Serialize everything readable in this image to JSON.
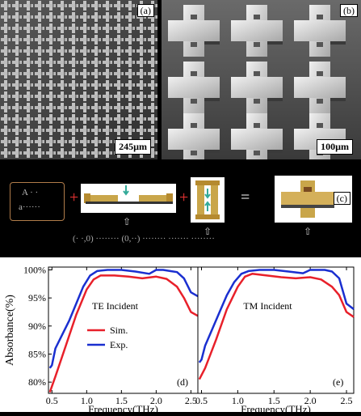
{
  "panels": {
    "a": {
      "label": "(a)",
      "scale": "245µm"
    },
    "b": {
      "label": "(b)",
      "scale": "100µm"
    },
    "c": {
      "label": "(c)"
    },
    "d": {
      "label": "(d)"
    },
    "e": {
      "label": "(e)"
    }
  },
  "schematic": {
    "box_text_1": "A · ·",
    "box_text_2": "a······",
    "op1": "+",
    "op2": "+",
    "op3": "=",
    "caption": "(· ·,0) ········ (0,··) ········ ······· ········"
  },
  "chart_data": [
    {
      "type": "line",
      "panel": "d",
      "annotation": "TE Incident",
      "xlabel": "Frequency(THz)",
      "ylabel": "Absorbance(%)",
      "xlim": [
        0.45,
        2.6
      ],
      "ylim": [
        78,
        100.5
      ],
      "xticks": [
        "0.5",
        "1.0",
        "1.5",
        "2.0",
        "2.5"
      ],
      "yticks": [
        "80%",
        "85%",
        "90%",
        "95%",
        "100%"
      ],
      "legend": [
        "Sim.",
        "Exp."
      ],
      "series": [
        {
          "name": "Sim.",
          "color": "#e8202a",
          "x": [
            0.47,
            0.55,
            0.7,
            0.85,
            1.0,
            1.1,
            1.2,
            1.4,
            1.6,
            1.8,
            2.0,
            2.15,
            2.3,
            2.4,
            2.5,
            2.6
          ],
          "y": [
            78.2,
            81,
            86.5,
            92,
            96.5,
            98.3,
            99.0,
            99.0,
            98.8,
            98.5,
            98.8,
            98.4,
            97.0,
            95.0,
            92.5,
            91.8
          ]
        },
        {
          "name": "Exp.",
          "color": "#1a2fd0",
          "x": [
            0.47,
            0.5,
            0.55,
            0.65,
            0.75,
            0.85,
            0.95,
            1.05,
            1.15,
            1.3,
            1.5,
            1.7,
            1.9,
            2.0,
            2.1,
            2.2,
            2.3,
            2.4,
            2.5,
            2.6
          ],
          "y": [
            82.5,
            83,
            86,
            88.5,
            91,
            94,
            97,
            99,
            99.8,
            100,
            100,
            99.7,
            99.3,
            100,
            100,
            99.8,
            99.6,
            98.5,
            96,
            95.3
          ]
        }
      ]
    },
    {
      "type": "line",
      "panel": "e",
      "annotation": "TM Incident",
      "xlabel": "Frequency(THz)",
      "xlim": [
        0.45,
        2.6
      ],
      "ylim": [
        78,
        100.5
      ],
      "xticks": [
        "0.5",
        "1.0",
        "1.5",
        "2.0",
        "2.5"
      ],
      "series": [
        {
          "name": "Sim.",
          "color": "#e8202a",
          "x": [
            0.47,
            0.55,
            0.7,
            0.85,
            1.0,
            1.1,
            1.2,
            1.4,
            1.6,
            1.8,
            2.0,
            2.15,
            2.3,
            2.4,
            2.5,
            2.6
          ],
          "y": [
            80.5,
            82.5,
            87.5,
            93,
            97,
            98.8,
            99.3,
            99.0,
            98.7,
            98.5,
            98.7,
            98.3,
            97.0,
            95.5,
            92.5,
            91.6
          ]
        },
        {
          "name": "Exp.",
          "color": "#1a2fd0",
          "x": [
            0.47,
            0.5,
            0.55,
            0.65,
            0.75,
            0.85,
            0.95,
            1.05,
            1.15,
            1.3,
            1.5,
            1.7,
            1.9,
            2.0,
            2.1,
            2.2,
            2.3,
            2.4,
            2.5,
            2.6
          ],
          "y": [
            83.5,
            84,
            86.5,
            89.5,
            92.5,
            95.5,
            97.8,
            99.3,
            99.8,
            100,
            100,
            99.7,
            99.4,
            100,
            100,
            100,
            99.7,
            98.5,
            94,
            93
          ]
        }
      ]
    }
  ]
}
